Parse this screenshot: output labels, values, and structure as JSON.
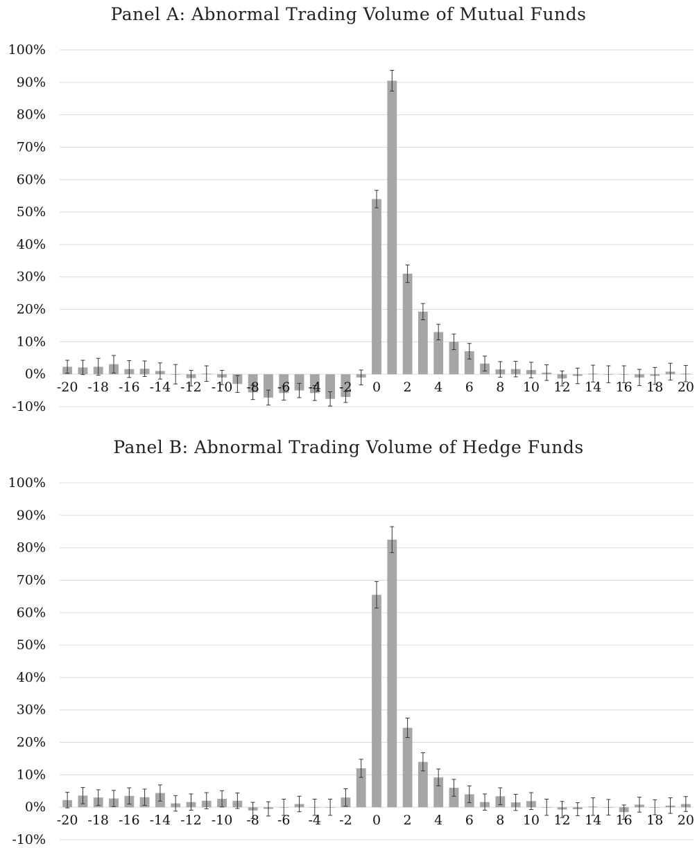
{
  "chart_data": [
    {
      "type": "bar",
      "title": "Panel A: Abnormal Trading Volume of Mutual Funds",
      "xlabel": "",
      "ylabel": "",
      "ylim": [
        -0.1,
        1.0
      ],
      "y_ticks": [
        "-10%",
        "0%",
        "10%",
        "20%",
        "30%",
        "40%",
        "50%",
        "60%",
        "70%",
        "80%",
        "90%",
        "100%"
      ],
      "x_tick_labels": [
        "-20",
        "-18",
        "-16",
        "-14",
        "-12",
        "-10",
        "-8",
        "-6",
        "-4",
        "-2",
        "0",
        "2",
        "4",
        "6",
        "8",
        "10",
        "12",
        "14",
        "16",
        "18",
        "20"
      ],
      "grid": true,
      "bar_color": "#a6a6a6",
      "x": [
        -20,
        -19,
        -18,
        -17,
        -16,
        -15,
        -14,
        -13,
        -12,
        -11,
        -10,
        -9,
        -8,
        -7,
        -6,
        -5,
        -4,
        -3,
        -2,
        -1,
        0,
        1,
        2,
        3,
        4,
        5,
        6,
        7,
        8,
        9,
        10,
        11,
        12,
        13,
        14,
        15,
        16,
        17,
        18,
        19,
        20
      ],
      "values": [
        0.023,
        0.021,
        0.023,
        0.031,
        0.016,
        0.017,
        0.01,
        0.0,
        -0.012,
        0.002,
        -0.01,
        -0.03,
        -0.056,
        -0.072,
        -0.058,
        -0.05,
        -0.058,
        -0.076,
        -0.07,
        -0.01,
        0.54,
        0.905,
        0.31,
        0.193,
        0.13,
        0.1,
        0.071,
        0.033,
        0.015,
        0.016,
        0.013,
        0.005,
        -0.013,
        -0.005,
        0.002,
        0.0,
        0.0,
        -0.01,
        -0.005,
        0.008,
        0.002
      ],
      "error": [
        0.02,
        0.022,
        0.026,
        0.027,
        0.026,
        0.024,
        0.025,
        0.03,
        0.024,
        0.024,
        0.022,
        0.026,
        0.022,
        0.023,
        0.022,
        0.022,
        0.023,
        0.022,
        0.017,
        0.023,
        0.027,
        0.032,
        0.027,
        0.025,
        0.024,
        0.024,
        0.024,
        0.023,
        0.024,
        0.024,
        0.024,
        0.024,
        0.023,
        0.024,
        0.026,
        0.026,
        0.026,
        0.025,
        0.026,
        0.026,
        0.025
      ]
    },
    {
      "type": "bar",
      "title": "Panel B: Abnormal Trading Volume of Hedge Funds",
      "xlabel": "",
      "ylabel": "",
      "ylim": [
        -0.1,
        1.0
      ],
      "y_ticks": [
        "-10%",
        "0%",
        "10%",
        "20%",
        "30%",
        "40%",
        "50%",
        "60%",
        "70%",
        "80%",
        "90%",
        "100%"
      ],
      "x_tick_labels": [
        "-20",
        "-18",
        "-16",
        "-14",
        "-12",
        "-10",
        "-8",
        "-6",
        "-4",
        "-2",
        "0",
        "2",
        "4",
        "6",
        "8",
        "10",
        "12",
        "14",
        "16",
        "18",
        "20"
      ],
      "grid": true,
      "bar_color": "#a6a6a6",
      "x": [
        -20,
        -19,
        -18,
        -17,
        -16,
        -15,
        -14,
        -13,
        -12,
        -11,
        -10,
        -9,
        -8,
        -7,
        -6,
        -5,
        -4,
        -3,
        -2,
        -1,
        0,
        1,
        2,
        3,
        4,
        5,
        6,
        7,
        8,
        9,
        10,
        11,
        12,
        13,
        14,
        15,
        16,
        17,
        18,
        19,
        20
      ],
      "values": [
        0.022,
        0.036,
        0.03,
        0.027,
        0.035,
        0.031,
        0.044,
        0.012,
        0.016,
        0.02,
        0.026,
        0.02,
        -0.01,
        -0.005,
        0.0,
        0.01,
        0.0,
        0.0,
        0.03,
        0.12,
        0.655,
        0.825,
        0.245,
        0.14,
        0.092,
        0.06,
        0.04,
        0.016,
        0.034,
        0.015,
        0.019,
        0.0,
        -0.007,
        -0.006,
        0.002,
        0.0,
        -0.015,
        0.008,
        0.0,
        0.005,
        0.01
      ],
      "error": [
        0.024,
        0.025,
        0.024,
        0.025,
        0.025,
        0.025,
        0.025,
        0.024,
        0.025,
        0.025,
        0.025,
        0.024,
        0.025,
        0.022,
        0.025,
        0.024,
        0.025,
        0.025,
        0.027,
        0.028,
        0.041,
        0.04,
        0.03,
        0.028,
        0.026,
        0.026,
        0.026,
        0.025,
        0.026,
        0.025,
        0.026,
        0.025,
        0.025,
        0.02,
        0.027,
        0.024,
        0.022,
        0.023,
        0.023,
        0.024,
        0.023
      ]
    }
  ]
}
